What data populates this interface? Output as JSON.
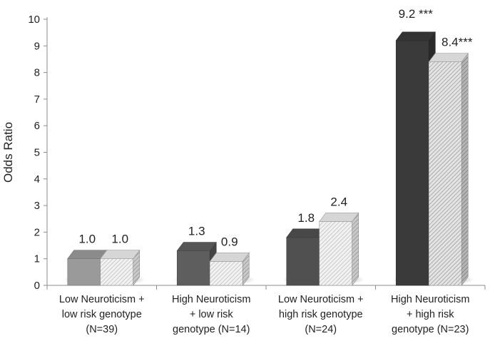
{
  "chart_data": {
    "type": "bar",
    "title": "",
    "xlabel": "",
    "ylabel": "Odds Ratio",
    "ylim": [
      0,
      10
    ],
    "yticks": [
      0,
      1,
      2,
      3,
      4,
      5,
      6,
      7,
      8,
      9,
      10
    ],
    "grid": false,
    "legend": "none",
    "style": "3d-bars",
    "categories": [
      [
        "Low Neuroticism +",
        "low risk genotype",
        "(N=39)"
      ],
      [
        "High Neuroticism",
        "+ low risk",
        "genotype (N=14)"
      ],
      [
        "Low Neuroticism +",
        "high risk genotype",
        "(N=24)"
      ],
      [
        "High Neuroticism",
        "+ high risk",
        "genotype (N=23)"
      ]
    ],
    "series": [
      {
        "values": [
          1.0,
          1.3,
          1.8,
          9.2
        ],
        "labels": [
          "1.0",
          "1.3",
          "1.8",
          "9.2 ***"
        ],
        "colors": [
          "#9a9a9a",
          "#5e5e5e",
          "#505050",
          "#3a3a3a"
        ]
      },
      {
        "values": [
          1.0,
          0.9,
          2.4,
          8.4
        ],
        "labels": [
          "1.0",
          "0.9",
          "2.4",
          "8.4***"
        ],
        "colors": [
          "hatch-light",
          "hatch-light",
          "hatch-light",
          "hatch-medium"
        ]
      }
    ]
  }
}
